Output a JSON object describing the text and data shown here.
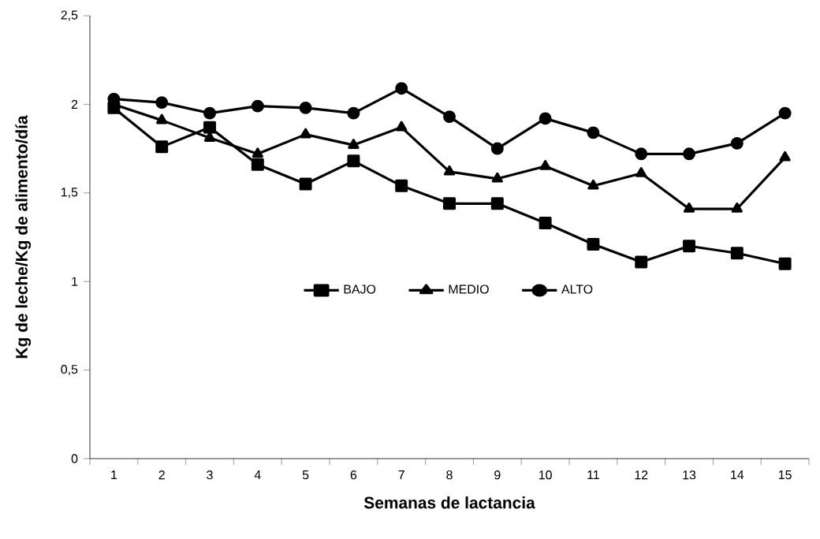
{
  "chart_data": {
    "type": "line",
    "xlabel": "Semanas de lactancia",
    "ylabel": "Kg de leche/Kg de alimento/día",
    "categories": [
      "1",
      "2",
      "3",
      "4",
      "5",
      "6",
      "7",
      "8",
      "9",
      "10",
      "11",
      "12",
      "13",
      "14",
      "15"
    ],
    "series": [
      {
        "name": "BAJO",
        "color": "#000000",
        "marker": "square",
        "values": [
          1.98,
          1.76,
          1.87,
          1.66,
          1.55,
          1.68,
          1.54,
          1.44,
          1.44,
          1.33,
          1.21,
          1.11,
          1.2,
          1.16,
          1.1
        ]
      },
      {
        "name": "MEDIO",
        "color": "#000000",
        "marker": "triangle",
        "values": [
          2.0,
          1.91,
          1.81,
          1.72,
          1.83,
          1.77,
          1.87,
          1.62,
          1.58,
          1.65,
          1.54,
          1.61,
          1.41,
          1.41,
          1.7
        ]
      },
      {
        "name": "ALTO",
        "color": "#000000",
        "marker": "circle",
        "values": [
          2.03,
          2.01,
          1.95,
          1.99,
          1.98,
          1.95,
          2.09,
          1.93,
          1.75,
          1.92,
          1.84,
          1.72,
          1.72,
          1.78,
          1.95
        ]
      }
    ],
    "ylim": [
      0,
      2.5
    ],
    "yticks": [
      {
        "value": 0,
        "label": "0"
      },
      {
        "value": 0.5,
        "label": "0,5"
      },
      {
        "value": 1,
        "label": "1"
      },
      {
        "value": 1.5,
        "label": "1,5"
      },
      {
        "value": 2,
        "label": "2"
      },
      {
        "value": 2.5,
        "label": "2,5"
      }
    ],
    "grid": false,
    "legend": "center",
    "line_style": "solid"
  }
}
